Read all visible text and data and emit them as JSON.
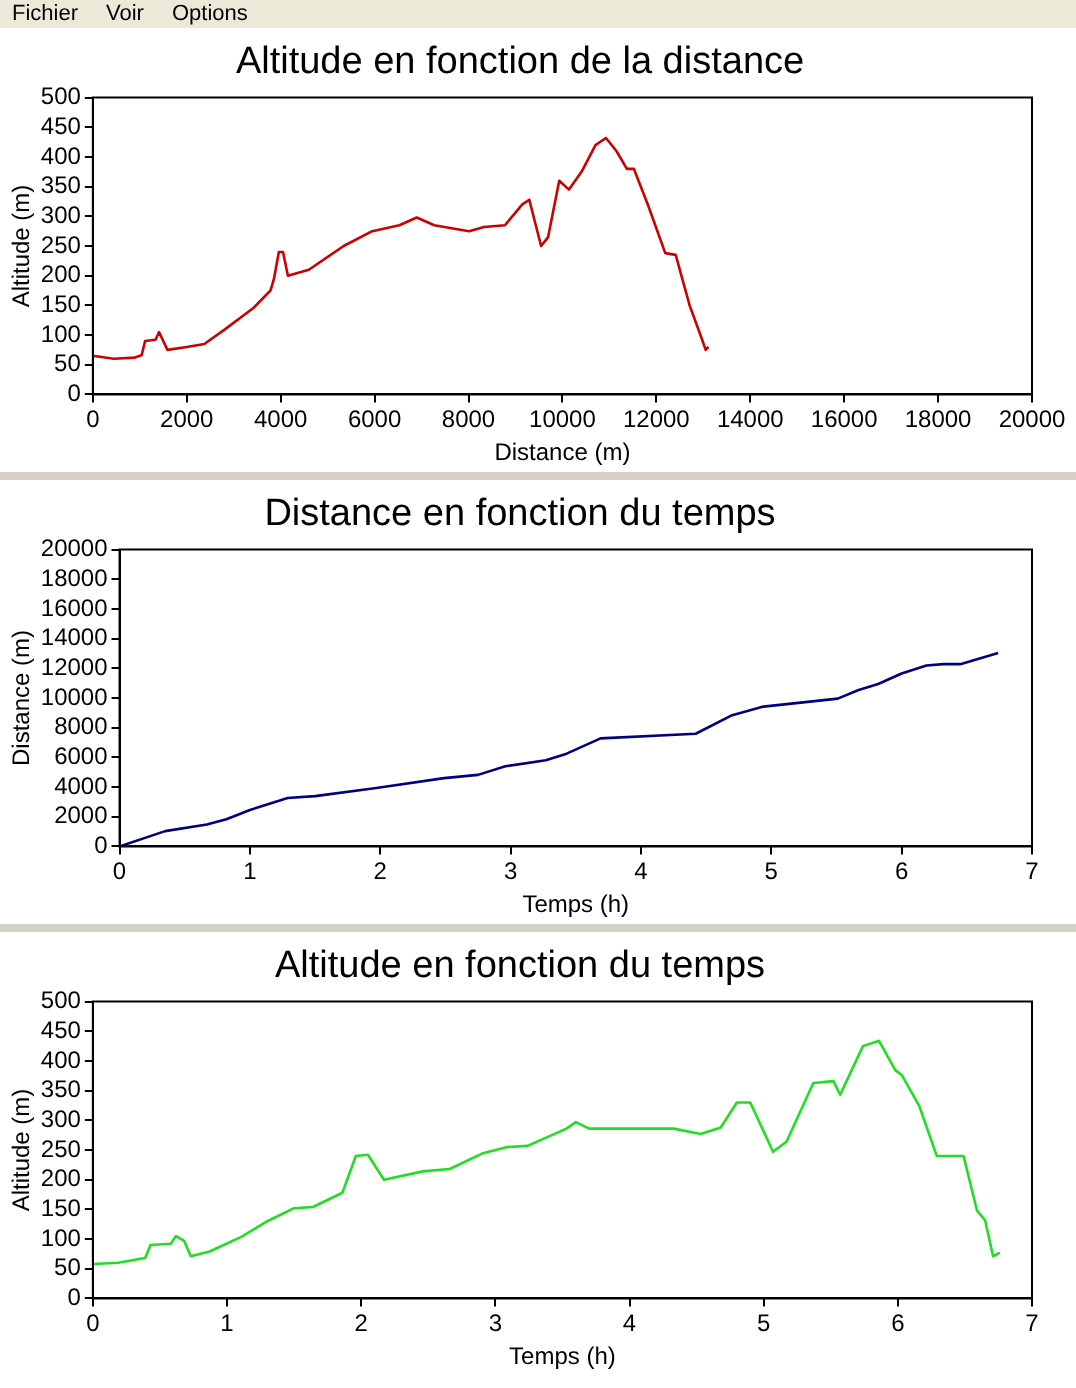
{
  "chart_data": [
    {
      "type": "line",
      "title": "Altitude en fonction de la distance",
      "xlabel": "Distance (m)",
      "ylabel": "Altitude (m)",
      "annotations": [
        "Fichier",
        "Voir",
        "Options"
      ],
      "xlim": [
        0,
        20000
      ],
      "xticks": [
        0,
        2000,
        4000,
        6000,
        8000,
        10000,
        12000,
        14000,
        16000,
        18000,
        20000
      ],
      "ylim": [
        0,
        500
      ],
      "yticks": [
        0,
        50,
        100,
        150,
        200,
        250,
        300,
        350,
        400,
        450,
        500
      ],
      "series": [
        {
          "color": "#cc0000",
          "x": [
            0,
            445,
            890,
            1039,
            1113,
            1335,
            1410,
            1588,
            2003,
            2374,
            2819,
            3412,
            3783,
            3858,
            3961,
            4050,
            4154,
            4600,
            5341,
            5950,
            6528,
            6899,
            7270,
            8012,
            8330,
            8775,
            9146,
            9294,
            9546,
            9695,
            9932,
            10140,
            10407,
            10704,
            10927,
            11150,
            11373,
            11521,
            11818,
            12190,
            12412,
            12709,
            12962,
            13051,
            13110
          ],
          "values": [
            65,
            60,
            62,
            66,
            90,
            92,
            105,
            75,
            80,
            85,
            110,
            145,
            175,
            195,
            240,
            240,
            200,
            210,
            250,
            275,
            285,
            298,
            285,
            275,
            282,
            285,
            320,
            328,
            250,
            265,
            360,
            345,
            375,
            420,
            432,
            410,
            380,
            380,
            320,
            238,
            235,
            150,
            95,
            75,
            80
          ]
        }
      ]
    },
    {
      "type": "line",
      "title": "Distance en fonction du temps",
      "xlabel": "Temps (h)",
      "ylabel": "Distance (m)",
      "xlim": [
        0,
        7
      ],
      "xticks": [
        0,
        1,
        2,
        3,
        4,
        5,
        6,
        7
      ],
      "ylim": [
        0,
        20000
      ],
      "yticks": [
        0,
        2000,
        4000,
        6000,
        8000,
        10000,
        12000,
        14000,
        16000,
        18000,
        20000
      ],
      "series": [
        {
          "color": "#000080",
          "x": [
            0,
            0.35,
            0.67,
            0.82,
            1.0,
            1.29,
            1.5,
            1.97,
            2.49,
            2.75,
            2.96,
            3.27,
            3.43,
            3.69,
            4.42,
            4.7,
            4.94,
            5.51,
            5.67,
            5.82,
            6.0,
            6.19,
            6.32,
            6.45,
            6.74
          ],
          "values": [
            0,
            1030,
            1470,
            1830,
            2450,
            3260,
            3390,
            3930,
            4600,
            4820,
            5400,
            5800,
            6250,
            7280,
            7590,
            8840,
            9420,
            9960,
            10540,
            10940,
            11650,
            12190,
            12280,
            12280,
            13040
          ]
        }
      ]
    },
    {
      "type": "line",
      "title": "Altitude en fonction du temps",
      "xlabel": "Temps (h)",
      "ylabel": "Altitude (m)",
      "xlim": [
        0,
        7
      ],
      "xticks": [
        0,
        1,
        2,
        3,
        4,
        5,
        6,
        7
      ],
      "ylim": [
        0,
        500
      ],
      "yticks": [
        0,
        50,
        100,
        150,
        200,
        250,
        300,
        350,
        400,
        450,
        500
      ],
      "series": [
        {
          "color": "#22dd22",
          "x": [
            0,
            0.19,
            0.39,
            0.43,
            0.58,
            0.62,
            0.68,
            0.73,
            0.87,
            1.11,
            1.3,
            1.5,
            1.64,
            1.86,
            1.96,
            2.05,
            2.17,
            2.46,
            2.66,
            2.9,
            3.09,
            3.24,
            3.53,
            3.6,
            3.7,
            4.33,
            4.53,
            4.68,
            4.8,
            4.9,
            5.07,
            5.17,
            5.37,
            5.52,
            5.57,
            5.74,
            5.86,
            5.98,
            6.03,
            6.16,
            6.29,
            6.49,
            6.59,
            6.65,
            6.71,
            6.76
          ],
          "values": [
            58,
            60,
            68,
            90,
            92,
            105,
            97,
            71,
            79,
            104,
            130,
            152,
            154,
            178,
            240,
            242,
            200,
            214,
            218,
            244,
            255,
            257,
            286,
            297,
            286,
            286,
            277,
            288,
            330,
            330,
            247,
            264,
            363,
            366,
            343,
            425,
            434,
            385,
            376,
            324,
            240,
            240,
            148,
            132,
            71,
            77
          ]
        }
      ]
    }
  ]
}
